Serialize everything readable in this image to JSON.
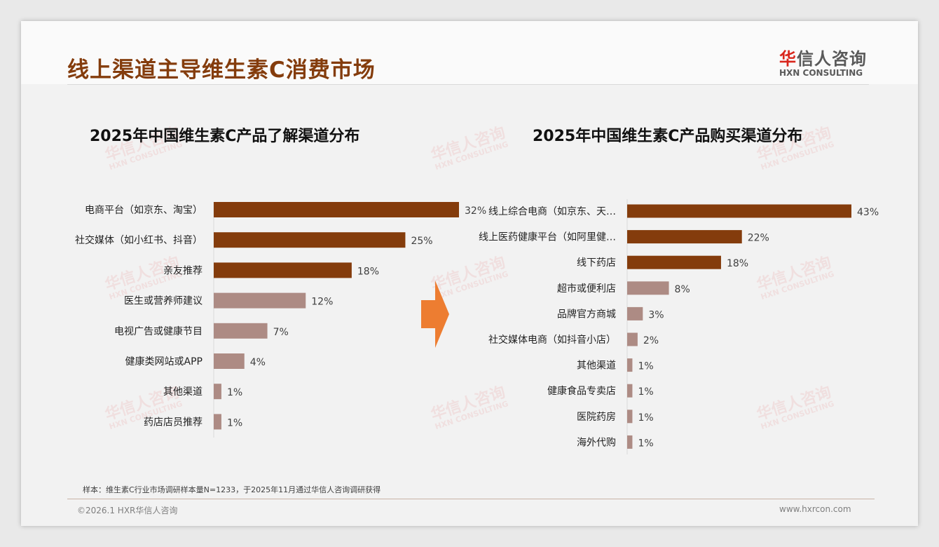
{
  "header": {
    "title": "线上渠道主导维生素C消费市场",
    "logo_cn_red": "华",
    "logo_cn": "信人咨询",
    "logo_en": "HXN CONSULTING"
  },
  "watermark": {
    "cn": "华信人咨询",
    "en": "HXN CONSULTING"
  },
  "colors": {
    "dark": "#843c0c",
    "light": "#ad8b84",
    "arrow": "#ed7d31"
  },
  "chart_data": [
    {
      "type": "bar",
      "orientation": "horizontal",
      "title": "2025年中国维生素C产品了解渠道分布",
      "categories": [
        "电商平台（如京东、淘宝）",
        "社交媒体（如小红书、抖音）",
        "亲友推荐",
        "医生或营养师建议",
        "电视广告或健康节目",
        "健康类网站或APP",
        "其他渠道",
        "药店店员推荐"
      ],
      "values": [
        32,
        25,
        18,
        12,
        7,
        4,
        1,
        1
      ],
      "labels": [
        "32%",
        "25%",
        "18%",
        "12%",
        "7%",
        "4%",
        "1%",
        "1%"
      ],
      "highlight_top": 3,
      "xlim": [
        0,
        32
      ]
    },
    {
      "type": "bar",
      "orientation": "horizontal",
      "title": "2025年中国维生素C产品购买渠道分布",
      "categories": [
        "线上综合电商（如京东、天…",
        "线上医药健康平台（如阿里健…",
        "线下药店",
        "超市或便利店",
        "品牌官方商城",
        "社交媒体电商（如抖音小店）",
        "其他渠道",
        "健康食品专卖店",
        "医院药房",
        "海外代购"
      ],
      "values": [
        43,
        22,
        18,
        8,
        3,
        2,
        1,
        1,
        1,
        1
      ],
      "labels": [
        "43%",
        "22%",
        "18%",
        "8%",
        "3%",
        "2%",
        "1%",
        "1%",
        "1%",
        "1%"
      ],
      "highlight_top": 3,
      "xlim": [
        0,
        43
      ]
    }
  ],
  "footer": {
    "note": "样本：维生素C行业市场调研样本量N=1233，于2025年11月通过华信人咨询调研获得",
    "copyright": "©2026.1 HXR华信人咨询",
    "site": "www.hxrcon.com"
  }
}
